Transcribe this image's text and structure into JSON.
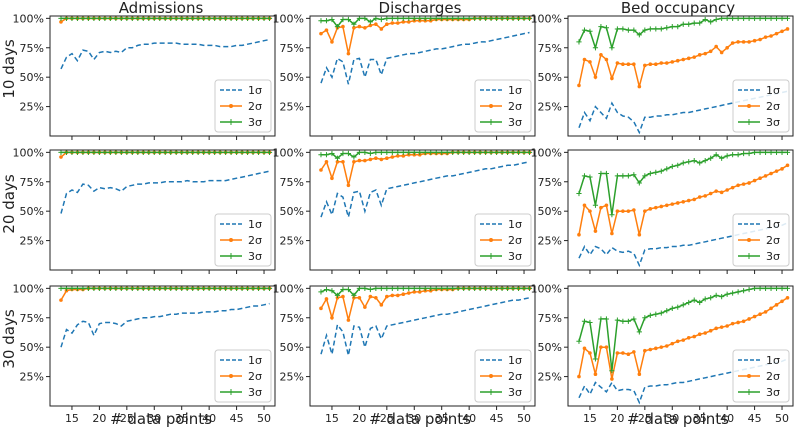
{
  "figure": {
    "col_titles": [
      "Admissions",
      "Discharges",
      "Bed occupancy"
    ],
    "row_labels": [
      "10 days",
      "20 days",
      "30 days"
    ],
    "xlabel": "# data points",
    "x_ticks": [
      "15",
      "20",
      "25",
      "30",
      "35",
      "40",
      "45",
      "50"
    ],
    "y_ticks": [
      "25%",
      "50%",
      "75%",
      "100%"
    ],
    "legend": [
      "1σ",
      "2σ",
      "3σ"
    ]
  },
  "colors": {
    "s1": "#1f77b4",
    "s2": "#ff7f0e",
    "s3": "#2ca02c",
    "axis": "#222222"
  },
  "chart_data": {
    "type": "line",
    "x_start": 13,
    "x_end": 51,
    "xlim": [
      11,
      52
    ],
    "ylim": [
      0,
      1.02
    ],
    "series_names": [
      "1σ",
      "2σ",
      "3σ"
    ],
    "panels": [
      {
        "row": "10 days",
        "col": "Admissions",
        "one": [
          0.57,
          0.67,
          0.7,
          0.64,
          0.73,
          0.72,
          0.65,
          0.71,
          0.72,
          0.71,
          0.72,
          0.71,
          0.75,
          0.75,
          0.77,
          0.78,
          0.78,
          0.79,
          0.79,
          0.79,
          0.79,
          0.79,
          0.78,
          0.78,
          0.78,
          0.78,
          0.77,
          0.77,
          0.77,
          0.76,
          0.76,
          0.76,
          0.77,
          0.77,
          0.78,
          0.79,
          0.8,
          0.81,
          0.82
        ],
        "two": [
          0.97,
          1.0,
          1.0,
          1.0,
          1.0,
          1.0,
          1.0,
          1.0,
          1.0,
          1.0,
          1.0,
          1.0,
          1.0,
          1.0,
          1.0,
          1.0,
          1.0,
          1.0,
          1.0,
          1.0,
          1.0,
          1.0,
          1.0,
          1.0,
          1.0,
          1.0,
          1.0,
          1.0,
          1.0,
          1.0,
          1.0,
          1.0,
          1.0,
          1.0,
          1.0,
          1.0,
          1.0,
          1.0,
          1.0
        ],
        "three": [
          1.0,
          1.0,
          1.0,
          1.0,
          1.0,
          1.0,
          1.0,
          1.0,
          1.0,
          1.0,
          1.0,
          1.0,
          1.0,
          1.0,
          1.0,
          1.0,
          1.0,
          1.0,
          1.0,
          1.0,
          1.0,
          1.0,
          1.0,
          1.0,
          1.0,
          1.0,
          1.0,
          1.0,
          1.0,
          1.0,
          1.0,
          1.0,
          1.0,
          1.0,
          1.0,
          1.0,
          1.0,
          1.0,
          1.0
        ]
      },
      {
        "row": "10 days",
        "col": "Discharges",
        "one": [
          0.45,
          0.58,
          0.5,
          0.66,
          0.63,
          0.44,
          0.65,
          0.66,
          0.5,
          0.65,
          0.65,
          0.52,
          0.66,
          0.67,
          0.68,
          0.69,
          0.7,
          0.7,
          0.71,
          0.72,
          0.73,
          0.74,
          0.74,
          0.75,
          0.76,
          0.77,
          0.78,
          0.78,
          0.79,
          0.8,
          0.8,
          0.81,
          0.82,
          0.83,
          0.84,
          0.85,
          0.86,
          0.87,
          0.88
        ],
        "two": [
          0.87,
          0.9,
          0.8,
          0.92,
          0.93,
          0.7,
          0.92,
          0.93,
          0.92,
          0.94,
          0.95,
          0.91,
          0.95,
          0.96,
          0.96,
          0.97,
          0.97,
          0.98,
          0.98,
          0.98,
          0.98,
          0.99,
          0.99,
          0.99,
          0.99,
          0.99,
          0.99,
          0.99,
          1.0,
          1.0,
          1.0,
          1.0,
          1.0,
          1.0,
          1.0,
          1.0,
          1.0,
          1.0,
          1.0
        ],
        "three": [
          0.98,
          0.98,
          0.99,
          0.93,
          0.99,
          0.99,
          0.95,
          1.0,
          1.0,
          0.97,
          1.0,
          0.99,
          1.0,
          1.0,
          1.0,
          1.0,
          1.0,
          1.0,
          1.0,
          1.0,
          1.0,
          1.0,
          1.0,
          1.0,
          1.0,
          1.0,
          1.0,
          1.0,
          1.0,
          1.0,
          1.0,
          1.0,
          1.0,
          1.0,
          1.0,
          1.0,
          1.0,
          1.0,
          1.0
        ]
      },
      {
        "row": "10 days",
        "col": "Bed occupancy",
        "one": [
          0.07,
          0.2,
          0.13,
          0.25,
          0.2,
          0.15,
          0.28,
          0.2,
          0.17,
          0.16,
          0.12,
          0.03,
          0.16,
          0.16,
          0.17,
          0.17,
          0.18,
          0.18,
          0.19,
          0.2,
          0.2,
          0.21,
          0.22,
          0.23,
          0.24,
          0.25,
          0.26,
          0.27,
          0.28,
          0.29,
          0.3,
          0.31,
          0.32,
          0.33,
          0.34,
          0.35,
          0.36,
          0.37,
          0.38
        ],
        "two": [
          0.43,
          0.65,
          0.63,
          0.5,
          0.69,
          0.65,
          0.49,
          0.62,
          0.61,
          0.61,
          0.61,
          0.42,
          0.6,
          0.61,
          0.61,
          0.62,
          0.62,
          0.63,
          0.64,
          0.65,
          0.66,
          0.67,
          0.69,
          0.7,
          0.72,
          0.76,
          0.71,
          0.75,
          0.79,
          0.8,
          0.8,
          0.8,
          0.81,
          0.82,
          0.84,
          0.85,
          0.87,
          0.89,
          0.91
        ],
        "three": [
          0.8,
          0.9,
          0.89,
          0.75,
          0.93,
          0.92,
          0.75,
          0.91,
          0.91,
          0.9,
          0.9,
          0.86,
          0.9,
          0.91,
          0.91,
          0.91,
          0.92,
          0.93,
          0.93,
          0.95,
          0.95,
          0.96,
          0.96,
          0.99,
          0.97,
          0.99,
          1.0,
          1.0,
          1.0,
          1.0,
          1.0,
          1.0,
          1.0,
          1.0,
          1.0,
          1.0,
          1.0,
          1.0,
          1.0
        ]
      },
      {
        "row": "20 days",
        "col": "Admissions",
        "one": [
          0.48,
          0.65,
          0.68,
          0.66,
          0.73,
          0.72,
          0.67,
          0.7,
          0.69,
          0.7,
          0.69,
          0.67,
          0.71,
          0.72,
          0.73,
          0.73,
          0.74,
          0.74,
          0.74,
          0.75,
          0.75,
          0.75,
          0.75,
          0.76,
          0.75,
          0.75,
          0.75,
          0.76,
          0.76,
          0.76,
          0.76,
          0.77,
          0.78,
          0.79,
          0.8,
          0.81,
          0.82,
          0.83,
          0.84
        ],
        "two": [
          0.96,
          1.0,
          1.0,
          1.0,
          1.0,
          1.0,
          1.0,
          1.0,
          1.0,
          1.0,
          1.0,
          1.0,
          1.0,
          1.0,
          1.0,
          1.0,
          1.0,
          1.0,
          1.0,
          1.0,
          1.0,
          1.0,
          1.0,
          1.0,
          1.0,
          1.0,
          1.0,
          1.0,
          1.0,
          1.0,
          1.0,
          1.0,
          1.0,
          1.0,
          1.0,
          1.0,
          1.0,
          1.0,
          1.0
        ],
        "three": [
          1.0,
          1.0,
          1.0,
          1.0,
          1.0,
          1.0,
          1.0,
          1.0,
          1.0,
          1.0,
          1.0,
          1.0,
          1.0,
          1.0,
          1.0,
          1.0,
          1.0,
          1.0,
          1.0,
          1.0,
          1.0,
          1.0,
          1.0,
          1.0,
          1.0,
          1.0,
          1.0,
          1.0,
          1.0,
          1.0,
          1.0,
          1.0,
          1.0,
          1.0,
          1.0,
          1.0,
          1.0,
          1.0,
          1.0
        ]
      },
      {
        "row": "20 days",
        "col": "Discharges",
        "one": [
          0.45,
          0.58,
          0.47,
          0.65,
          0.62,
          0.45,
          0.66,
          0.67,
          0.5,
          0.66,
          0.68,
          0.55,
          0.69,
          0.7,
          0.71,
          0.72,
          0.73,
          0.74,
          0.75,
          0.76,
          0.77,
          0.78,
          0.79,
          0.8,
          0.8,
          0.81,
          0.82,
          0.83,
          0.84,
          0.85,
          0.86,
          0.86,
          0.87,
          0.88,
          0.89,
          0.89,
          0.9,
          0.91,
          0.92
        ],
        "two": [
          0.85,
          0.92,
          0.78,
          0.92,
          0.92,
          0.72,
          0.92,
          0.93,
          0.93,
          0.94,
          0.95,
          0.94,
          0.95,
          0.96,
          0.97,
          0.97,
          0.98,
          0.98,
          0.98,
          0.99,
          0.99,
          0.99,
          0.99,
          0.99,
          1.0,
          1.0,
          1.0,
          1.0,
          1.0,
          1.0,
          1.0,
          1.0,
          1.0,
          1.0,
          1.0,
          1.0,
          1.0,
          1.0,
          1.0
        ],
        "three": [
          0.98,
          0.98,
          0.99,
          0.95,
          0.99,
          0.99,
          0.96,
          1.0,
          1.0,
          0.99,
          1.0,
          1.0,
          1.0,
          1.0,
          1.0,
          1.0,
          1.0,
          1.0,
          1.0,
          1.0,
          1.0,
          1.0,
          1.0,
          1.0,
          1.0,
          1.0,
          1.0,
          1.0,
          1.0,
          1.0,
          1.0,
          1.0,
          1.0,
          1.0,
          1.0,
          1.0,
          1.0,
          1.0,
          1.0
        ]
      },
      {
        "row": "20 days",
        "col": "Bed occupancy",
        "one": [
          0.1,
          0.2,
          0.13,
          0.2,
          0.18,
          0.13,
          0.19,
          0.16,
          0.15,
          0.16,
          0.14,
          0.04,
          0.17,
          0.18,
          0.18,
          0.19,
          0.19,
          0.2,
          0.2,
          0.21,
          0.21,
          0.22,
          0.23,
          0.24,
          0.25,
          0.26,
          0.27,
          0.28,
          0.29,
          0.3,
          0.31,
          0.32,
          0.33,
          0.34,
          0.35,
          0.36,
          0.37,
          0.38,
          0.4
        ],
        "two": [
          0.3,
          0.55,
          0.5,
          0.33,
          0.53,
          0.55,
          0.31,
          0.5,
          0.5,
          0.5,
          0.51,
          0.3,
          0.5,
          0.52,
          0.53,
          0.54,
          0.55,
          0.56,
          0.57,
          0.58,
          0.59,
          0.6,
          0.62,
          0.63,
          0.65,
          0.67,
          0.66,
          0.68,
          0.7,
          0.72,
          0.73,
          0.74,
          0.76,
          0.78,
          0.8,
          0.82,
          0.84,
          0.86,
          0.89
        ],
        "three": [
          0.65,
          0.8,
          0.79,
          0.55,
          0.82,
          0.82,
          0.47,
          0.8,
          0.8,
          0.8,
          0.81,
          0.74,
          0.8,
          0.82,
          0.83,
          0.84,
          0.86,
          0.88,
          0.89,
          0.91,
          0.92,
          0.93,
          0.91,
          0.93,
          0.95,
          0.98,
          0.95,
          0.97,
          0.98,
          0.98,
          0.99,
          0.99,
          1.0,
          1.0,
          1.0,
          1.0,
          1.0,
          1.0,
          1.0
        ]
      },
      {
        "row": "30 days",
        "col": "Admissions",
        "one": [
          0.5,
          0.65,
          0.62,
          0.69,
          0.72,
          0.71,
          0.6,
          0.7,
          0.71,
          0.71,
          0.7,
          0.68,
          0.72,
          0.73,
          0.74,
          0.75,
          0.75,
          0.76,
          0.76,
          0.77,
          0.78,
          0.78,
          0.79,
          0.79,
          0.79,
          0.79,
          0.8,
          0.8,
          0.8,
          0.81,
          0.81,
          0.82,
          0.82,
          0.83,
          0.84,
          0.85,
          0.85,
          0.86,
          0.87
        ],
        "two": [
          0.9,
          0.98,
          0.99,
          0.99,
          0.99,
          1.0,
          1.0,
          1.0,
          1.0,
          1.0,
          1.0,
          1.0,
          1.0,
          1.0,
          1.0,
          1.0,
          1.0,
          1.0,
          1.0,
          1.0,
          1.0,
          1.0,
          1.0,
          1.0,
          1.0,
          1.0,
          1.0,
          1.0,
          1.0,
          1.0,
          1.0,
          1.0,
          1.0,
          1.0,
          1.0,
          1.0,
          1.0,
          1.0,
          1.0
        ],
        "three": [
          1.0,
          1.0,
          1.0,
          1.0,
          1.0,
          1.0,
          1.0,
          1.0,
          1.0,
          1.0,
          1.0,
          1.0,
          1.0,
          1.0,
          1.0,
          1.0,
          1.0,
          1.0,
          1.0,
          1.0,
          1.0,
          1.0,
          1.0,
          1.0,
          1.0,
          1.0,
          1.0,
          1.0,
          1.0,
          1.0,
          1.0,
          1.0,
          1.0,
          1.0,
          1.0,
          1.0,
          1.0,
          1.0,
          1.0
        ]
      },
      {
        "row": "30 days",
        "col": "Discharges",
        "one": [
          0.44,
          0.6,
          0.44,
          0.69,
          0.63,
          0.43,
          0.68,
          0.67,
          0.5,
          0.66,
          0.68,
          0.57,
          0.68,
          0.69,
          0.7,
          0.71,
          0.72,
          0.73,
          0.74,
          0.75,
          0.76,
          0.77,
          0.78,
          0.78,
          0.79,
          0.8,
          0.81,
          0.82,
          0.83,
          0.84,
          0.85,
          0.86,
          0.87,
          0.88,
          0.89,
          0.9,
          0.9,
          0.91,
          0.92
        ],
        "two": [
          0.83,
          0.91,
          0.75,
          0.92,
          0.93,
          0.73,
          0.92,
          0.92,
          0.84,
          0.93,
          0.92,
          0.86,
          0.93,
          0.94,
          0.94,
          0.95,
          0.96,
          0.97,
          0.97,
          0.98,
          0.98,
          0.99,
          0.99,
          0.99,
          0.99,
          1.0,
          1.0,
          1.0,
          1.0,
          1.0,
          1.0,
          1.0,
          1.0,
          1.0,
          1.0,
          1.0,
          1.0,
          1.0,
          1.0
        ],
        "three": [
          0.97,
          0.99,
          0.98,
          0.94,
          0.99,
          0.99,
          0.94,
          1.0,
          1.0,
          0.99,
          1.0,
          1.0,
          1.0,
          1.0,
          1.0,
          1.0,
          1.0,
          1.0,
          1.0,
          1.0,
          1.0,
          1.0,
          1.0,
          1.0,
          1.0,
          1.0,
          1.0,
          1.0,
          1.0,
          1.0,
          1.0,
          1.0,
          1.0,
          1.0,
          1.0,
          1.0,
          1.0,
          1.0,
          1.0
        ]
      },
      {
        "row": "30 days",
        "col": "Bed occupancy",
        "one": [
          0.07,
          0.17,
          0.1,
          0.2,
          0.16,
          0.12,
          0.2,
          0.13,
          0.14,
          0.14,
          0.13,
          0.03,
          0.16,
          0.17,
          0.17,
          0.18,
          0.18,
          0.19,
          0.2,
          0.2,
          0.21,
          0.22,
          0.23,
          0.24,
          0.25,
          0.26,
          0.27,
          0.28,
          0.29,
          0.3,
          0.31,
          0.32,
          0.33,
          0.34,
          0.35,
          0.36,
          0.37,
          0.38,
          0.4
        ],
        "two": [
          0.25,
          0.49,
          0.45,
          0.27,
          0.5,
          0.5,
          0.23,
          0.45,
          0.45,
          0.44,
          0.46,
          0.27,
          0.47,
          0.48,
          0.49,
          0.5,
          0.51,
          0.53,
          0.55,
          0.56,
          0.58,
          0.59,
          0.61,
          0.62,
          0.64,
          0.66,
          0.67,
          0.68,
          0.7,
          0.71,
          0.72,
          0.74,
          0.76,
          0.78,
          0.8,
          0.83,
          0.86,
          0.89,
          0.92
        ],
        "three": [
          0.55,
          0.72,
          0.71,
          0.4,
          0.74,
          0.74,
          0.3,
          0.73,
          0.72,
          0.72,
          0.74,
          0.63,
          0.75,
          0.77,
          0.78,
          0.79,
          0.81,
          0.83,
          0.84,
          0.86,
          0.88,
          0.9,
          0.88,
          0.91,
          0.92,
          0.94,
          0.93,
          0.95,
          0.96,
          0.97,
          0.98,
          0.99,
          1.0,
          1.0,
          1.0,
          1.0,
          1.0,
          1.0,
          1.0
        ]
      }
    ]
  }
}
